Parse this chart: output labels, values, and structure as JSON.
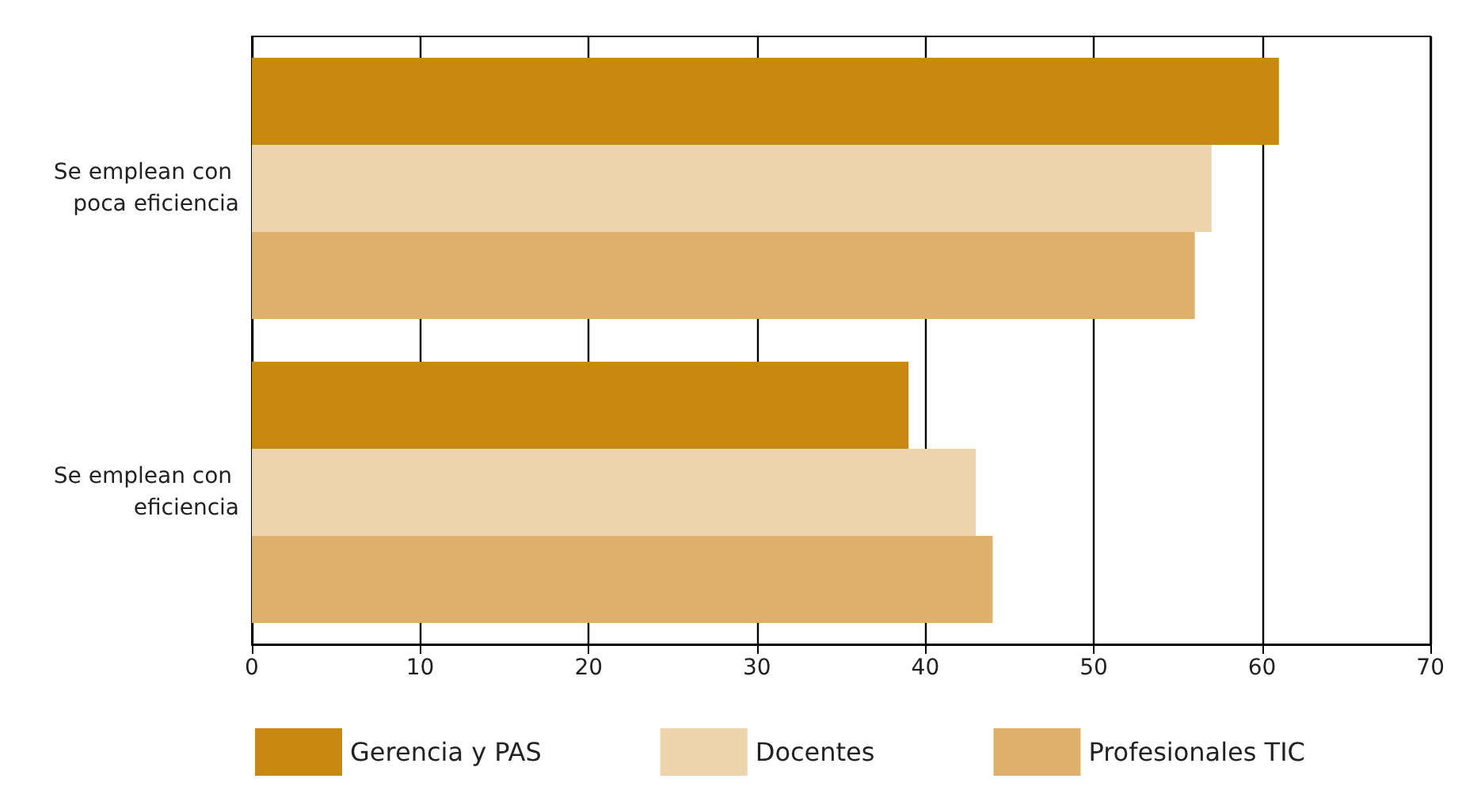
{
  "chart_data": {
    "type": "bar",
    "orientation": "horizontal",
    "categories": [
      "Se emplean con poca eficiencia",
      "Se emplean con eficiencia"
    ],
    "series": [
      {
        "name": "Gerencia y PAS",
        "color": "#c8890e",
        "values": [
          61,
          39
        ]
      },
      {
        "name": "Docentes",
        "color": "#edd4ab",
        "values": [
          57,
          43
        ]
      },
      {
        "name": "Profesionales TIC",
        "color": "#dfb06c",
        "values": [
          56,
          44
        ]
      }
    ],
    "xlim": [
      0,
      70
    ],
    "xticks": [
      0,
      10,
      20,
      30,
      40,
      50,
      60,
      70
    ],
    "grid": "x",
    "legend": "bottom"
  }
}
